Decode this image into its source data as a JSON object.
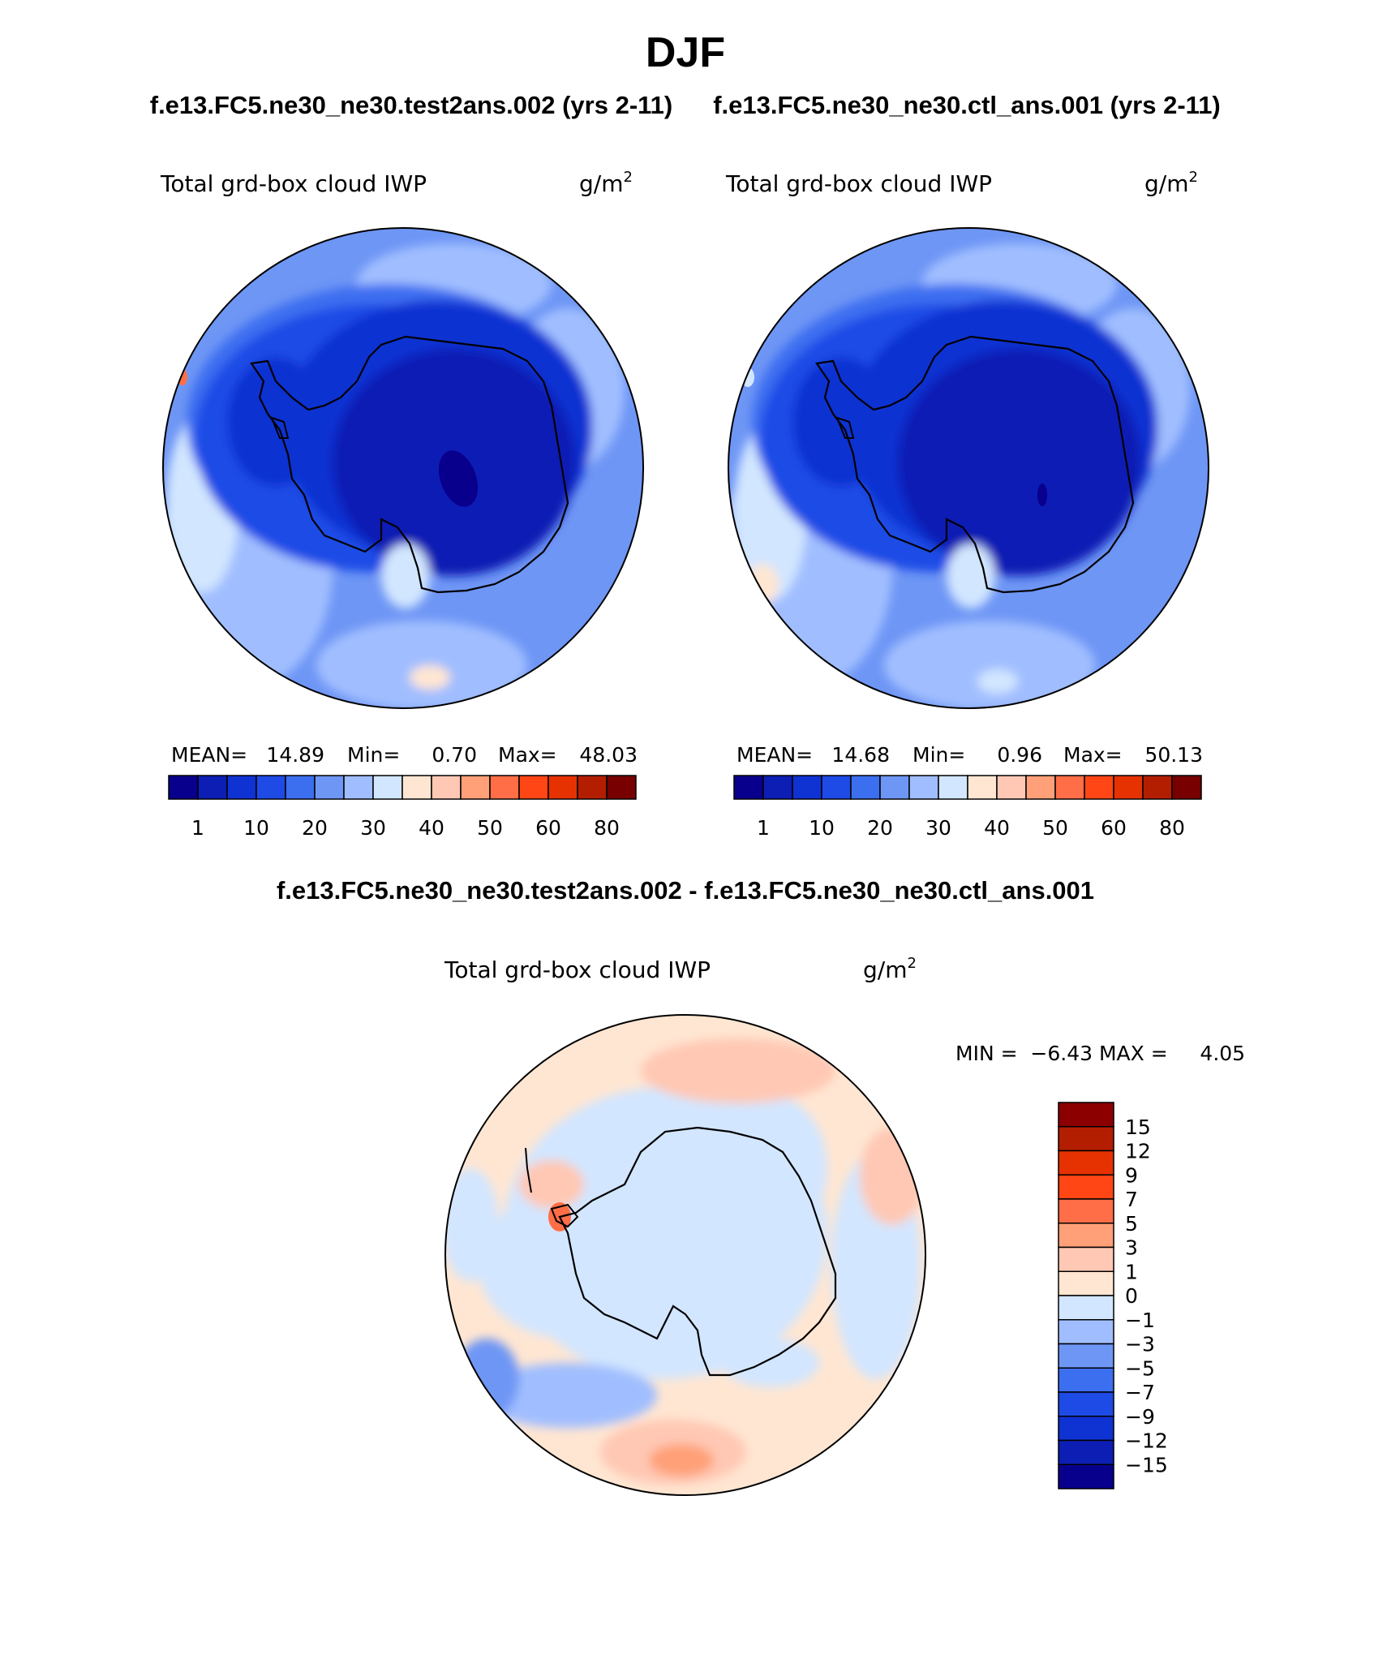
{
  "page": {
    "season_title": "DJF",
    "left_case_title": "f.e13.FC5.ne30_ne30.test2ans.002 (yrs 2-11)",
    "right_case_title": "f.e13.FC5.ne30_ne30.ctl_ans.001 (yrs 2-11)",
    "diff_title": "f.e13.FC5.ne30_ne30.test2ans.002 - f.e13.FC5.ne30_ne30.ctl_ans.001"
  },
  "panels": {
    "left": {
      "variable": "Total grd-box cloud IWP",
      "units_base": "g/m",
      "units_exp": "2",
      "mean_label": "MEAN=",
      "mean_value": "14.89",
      "min_label": "Min=",
      "min_value": "0.70",
      "max_label": "Max=",
      "max_value": "48.03"
    },
    "right": {
      "variable": "Total grd-box cloud IWP",
      "units_base": "g/m",
      "units_exp": "2",
      "mean_label": "MEAN=",
      "mean_value": "14.68",
      "min_label": "Min=",
      "min_value": "0.96",
      "max_label": "Max=",
      "max_value": "50.13"
    },
    "diff": {
      "variable": "Total grd-box cloud IWP",
      "units_base": "g/m",
      "units_exp": "2",
      "minmax_text": "MIN =  −6.43 MAX =     4.05"
    }
  },
  "colorbars": {
    "abs": {
      "colors": [
        "#08008c",
        "#0d1eb4",
        "#0f32d2",
        "#1e4be6",
        "#3c6ef0",
        "#6e96f5",
        "#a0beff",
        "#d2e6ff",
        "#ffe6d2",
        "#ffc8b4",
        "#ffa078",
        "#ff6e46",
        "#ff4614",
        "#e63200",
        "#b41e00",
        "#780000"
      ],
      "tick_labels": [
        "1",
        "10",
        "20",
        "30",
        "40",
        "50",
        "60",
        "80"
      ]
    },
    "diff": {
      "colors": [
        "#8c0000",
        "#b41e00",
        "#e63200",
        "#ff4614",
        "#ff6e46",
        "#ffa078",
        "#ffc8b4",
        "#ffe6d2",
        "#d2e6ff",
        "#a0beff",
        "#6e96f5",
        "#3c6ef0",
        "#1e4be6",
        "#0f32d2",
        "#0d1eb4",
        "#08008c"
      ],
      "tick_labels": [
        "15",
        "12",
        "9",
        "7",
        "5",
        "3",
        "1",
        "0",
        "−1",
        "−3",
        "−5",
        "−7",
        "−9",
        "−12",
        "−15"
      ]
    }
  }
}
